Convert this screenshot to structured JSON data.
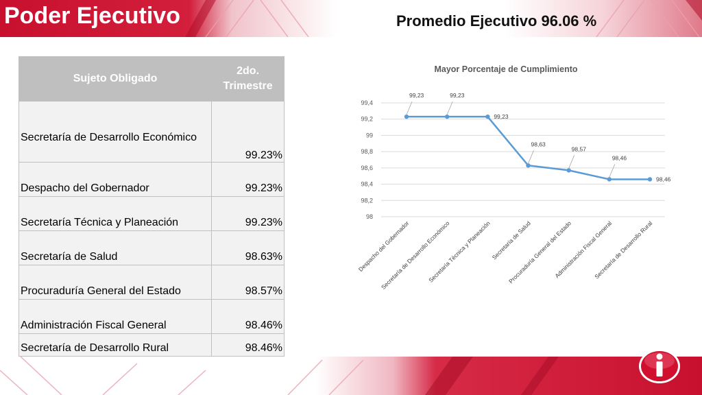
{
  "header": {
    "title": "Poder Ejecutivo",
    "subtitle": "Promedio Ejecutivo 96.06 %"
  },
  "table": {
    "headers": [
      "Sujeto Obligado",
      "2do. Trimestre"
    ],
    "rows": [
      {
        "name": "Secretaría de Desarrollo  Económico",
        "value": "99.23%"
      },
      {
        "name": "Despacho del Gobernador",
        "value": "99.23%"
      },
      {
        "name": "Secretaría Técnica y Planeación",
        "value": "99.23%"
      },
      {
        "name": "Secretaría de Salud",
        "value": "98.63%"
      },
      {
        "name": "Procuraduría General del Estado",
        "value": "98.57%"
      },
      {
        "name": "Administración  Fiscal General",
        "value": "98.46%"
      },
      {
        "name": "Secretaría de Desarrollo  Rural",
        "value": "98.46%"
      }
    ]
  },
  "colors": {
    "brand_red": "#c8102e",
    "line": "#5b9bd5",
    "header_gray": "#bfbfbf",
    "cell_gray": "#f2f2f2"
  },
  "chart_data": {
    "type": "line",
    "title": "Mayor Porcentaje de Cumplimiento",
    "categories": [
      "Despacho del Gobernador",
      "Secretaría de Desarrollo  Económico",
      "Secretaría Técnica y Planeación",
      "Secretaría de Salud",
      "Procuraduría General del Estado",
      "Administración  Fiscal General",
      "Secretaría de Desarrollo  Rural"
    ],
    "values": [
      99.23,
      99.23,
      99.23,
      98.63,
      98.57,
      98.46,
      98.46
    ],
    "data_labels": [
      "99,23",
      "99,23",
      "99,23",
      "98,63",
      "98,57",
      "98,46",
      "98,46"
    ],
    "yticks": [
      "98",
      "98,2",
      "98,4",
      "98,6",
      "98,8",
      "99",
      "99,2",
      "99,4"
    ],
    "ylim": [
      98,
      99.4
    ],
    "grid": true,
    "legend": "none"
  },
  "logo": {
    "icon": "info-i-icon"
  }
}
